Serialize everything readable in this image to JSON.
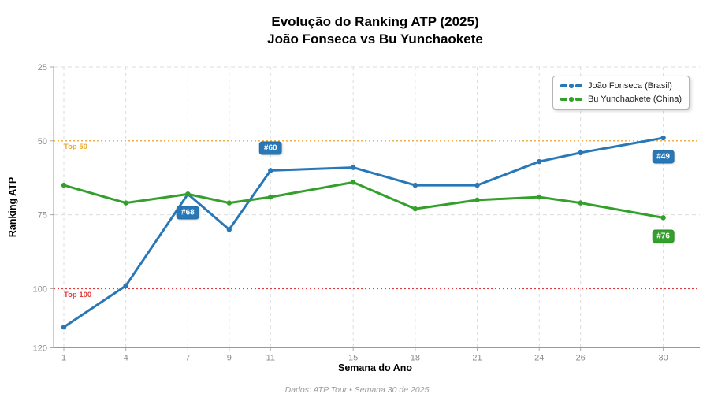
{
  "title": {
    "line1": "Evolução do Ranking ATP (2025)",
    "line2": "João Fonseca vs Bu Yunchaokete"
  },
  "ylabel": "Ranking ATP",
  "xlabel": "Semana do Ano",
  "footer": "Dados: ATP Tour • Semana 30 de 2025",
  "chart_data": {
    "type": "line",
    "x": [
      1,
      4,
      7,
      9,
      11,
      15,
      18,
      21,
      24,
      26,
      30
    ],
    "y_ticks": [
      25,
      50,
      75,
      100,
      120
    ],
    "ylim": [
      25,
      120
    ],
    "y_axis_inverted": true,
    "grid": "dashed light-gray, both axes",
    "legend_position": "top-right",
    "series": [
      {
        "name": "João Fonseca (Brasil)",
        "color": "#2878b8",
        "values": [
          113,
          99,
          68,
          80,
          60,
          59,
          65,
          65,
          57,
          54,
          49
        ]
      },
      {
        "name": "Bu Yunchaokete (China)",
        "color": "#33a02c",
        "values": [
          65,
          71,
          68,
          71,
          69,
          64,
          73,
          70,
          69,
          71,
          76
        ]
      }
    ],
    "reference_lines": [
      {
        "label": "Top 50",
        "value": 50,
        "color": "#f0a830"
      },
      {
        "label": "Top 100",
        "value": 100,
        "color": "#e03c3c"
      }
    ],
    "annotations": [
      {
        "text": "#68",
        "week": 7,
        "rank": 68,
        "color": "#2878b8",
        "placement": "below"
      },
      {
        "text": "#60",
        "week": 11,
        "rank": 60,
        "color": "#2878b8",
        "placement": "above"
      },
      {
        "text": "#49",
        "week": 30,
        "rank": 49,
        "color": "#2878b8",
        "placement": "below"
      },
      {
        "text": "#76",
        "week": 30,
        "rank": 76,
        "color": "#33a02c",
        "placement": "below"
      }
    ]
  }
}
